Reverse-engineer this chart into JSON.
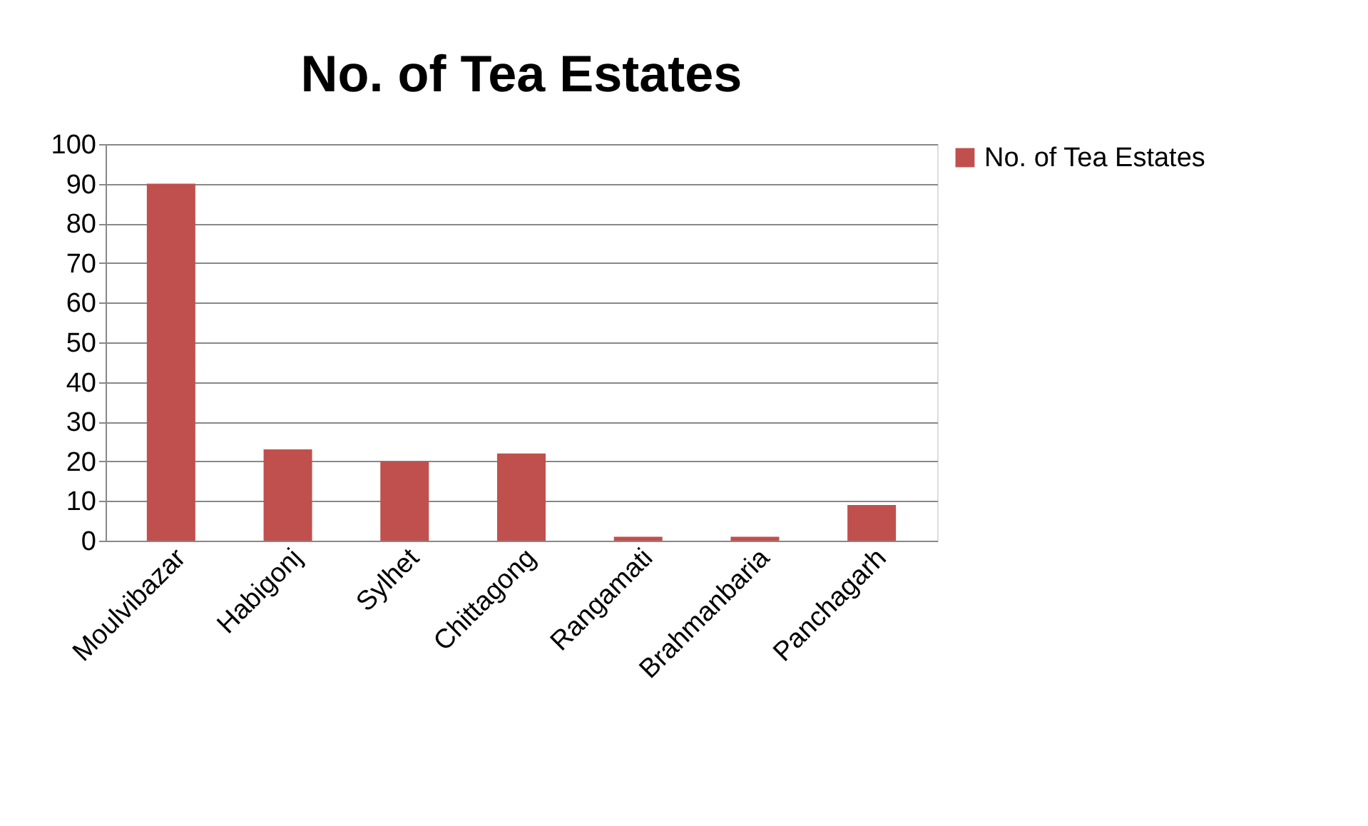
{
  "chart_data": {
    "type": "bar",
    "title": "No. of Tea Estates",
    "categories": [
      "Moulvibazar",
      "Habigonj",
      "Sylhet",
      "Chittagong",
      "Rangamati",
      "Brahmanbaria",
      "Panchagarh"
    ],
    "series": [
      {
        "name": "No. of Tea Estates",
        "color": "#c0504d",
        "values": [
          90,
          23,
          20,
          22,
          1,
          1,
          9
        ]
      }
    ],
    "ylim": [
      0,
      100
    ],
    "yticks": [
      0,
      10,
      20,
      30,
      40,
      50,
      60,
      70,
      80,
      90,
      100
    ],
    "grid": "y",
    "legend": "right"
  }
}
